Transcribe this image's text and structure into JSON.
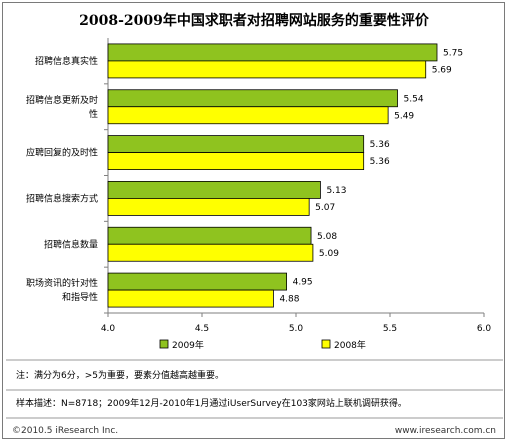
{
  "chart_data": {
    "type": "bar",
    "orientation": "horizontal",
    "title": "2008-2009年中国求职者对招聘网站服务的重要性评价",
    "categories": [
      [
        "招聘信息真实性"
      ],
      [
        "招聘信息更新及时",
        "性"
      ],
      [
        "应聘回复的及时性"
      ],
      [
        "招聘信息搜索方式"
      ],
      [
        "招聘信息数量"
      ],
      [
        "职场资讯的针对性",
        "和指导性"
      ]
    ],
    "series": [
      {
        "name": "2009年",
        "color": "#8fc31f",
        "values": [
          5.75,
          5.54,
          5.36,
          5.13,
          5.08,
          4.95
        ]
      },
      {
        "name": "2008年",
        "color": "#ffff00",
        "values": [
          5.69,
          5.49,
          5.36,
          5.07,
          5.09,
          4.88
        ]
      }
    ],
    "value_labels": [
      [
        "5.75",
        "5.54",
        "5.36",
        "5.13",
        "5.08",
        "4.95"
      ],
      [
        "5.69",
        "5.49",
        "5.36",
        "5.07",
        "5.09",
        "4.88"
      ]
    ],
    "xlim": [
      4.0,
      6.0
    ],
    "xticks": [
      "4.0",
      "4.5",
      "5.0",
      "5.5",
      "6.0"
    ],
    "legend_position": "bottom"
  },
  "note": "注：满分为6分，>5为重要，要素分值越高越重要。",
  "sample": "样本描述：N=8718；2009年12月-2010年1月通过iUserSurvey在103家网站上联机调研获得。",
  "footer_left": "©2010.5 iResearch Inc.",
  "footer_right": "www.iresearch.com.cn"
}
